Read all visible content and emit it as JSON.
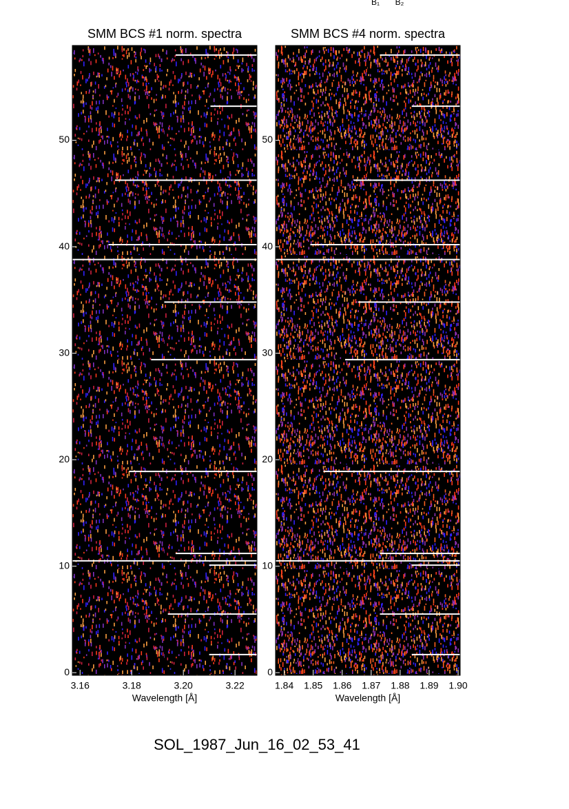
{
  "chart_data": [
    {
      "type": "heatmap",
      "title": "SMM BCS #1 norm. spectra",
      "xlabel": "Wavelength [Å]",
      "xlim": [
        3.157,
        3.2285
      ],
      "xticks": [
        {
          "value": 3.16,
          "label": "3.16"
        },
        {
          "value": 3.18,
          "label": "3.18"
        },
        {
          "value": 3.2,
          "label": "3.20"
        },
        {
          "value": 3.22,
          "label": "3.22"
        }
      ],
      "ylim": [
        -0.25,
        58.9
      ],
      "yticks": [
        0,
        10,
        20,
        30,
        40,
        50
      ],
      "lines_y": [
        58.0,
        53.2,
        46.25,
        40.2,
        38.8,
        34.8,
        29.4,
        18.9,
        11.2,
        10.5,
        10.1,
        5.5,
        1.7
      ],
      "lines_x_start": [
        3.197,
        3.2105,
        3.1735,
        3.171,
        3.157,
        3.1926,
        3.1875,
        3.179,
        3.197,
        3.157,
        3.21,
        3.194,
        3.21
      ]
    },
    {
      "type": "heatmap",
      "title": "SMM BCS #4 norm. spectra",
      "xlabel": "Wavelength [Å]",
      "xlim": [
        1.837,
        1.9007
      ],
      "xticks": [
        1.84,
        1.85,
        1.86,
        1.87,
        1.88,
        1.89,
        {
          "value": 1.9,
          "label": "1.90"
        }
      ],
      "ylim": [
        -0.25,
        58.9
      ],
      "yticks": [
        0,
        10,
        20,
        30,
        40,
        50
      ],
      "lines_y": [
        58.0,
        53.2,
        46.25,
        40.2,
        38.8,
        34.8,
        29.4,
        18.9,
        11.2,
        10.5,
        10.1,
        5.5,
        1.7
      ],
      "lines_x_start": [
        1.873,
        1.884,
        1.864,
        1.849,
        1.837,
        1.8655,
        1.861,
        1.8535,
        1.873,
        1.837,
        1.884,
        1.873,
        1.884
      ]
    }
  ],
  "top_labels": [
    "B₁",
    "B₂"
  ],
  "footer": "SOL_1987_Jun_16_02_53_41"
}
